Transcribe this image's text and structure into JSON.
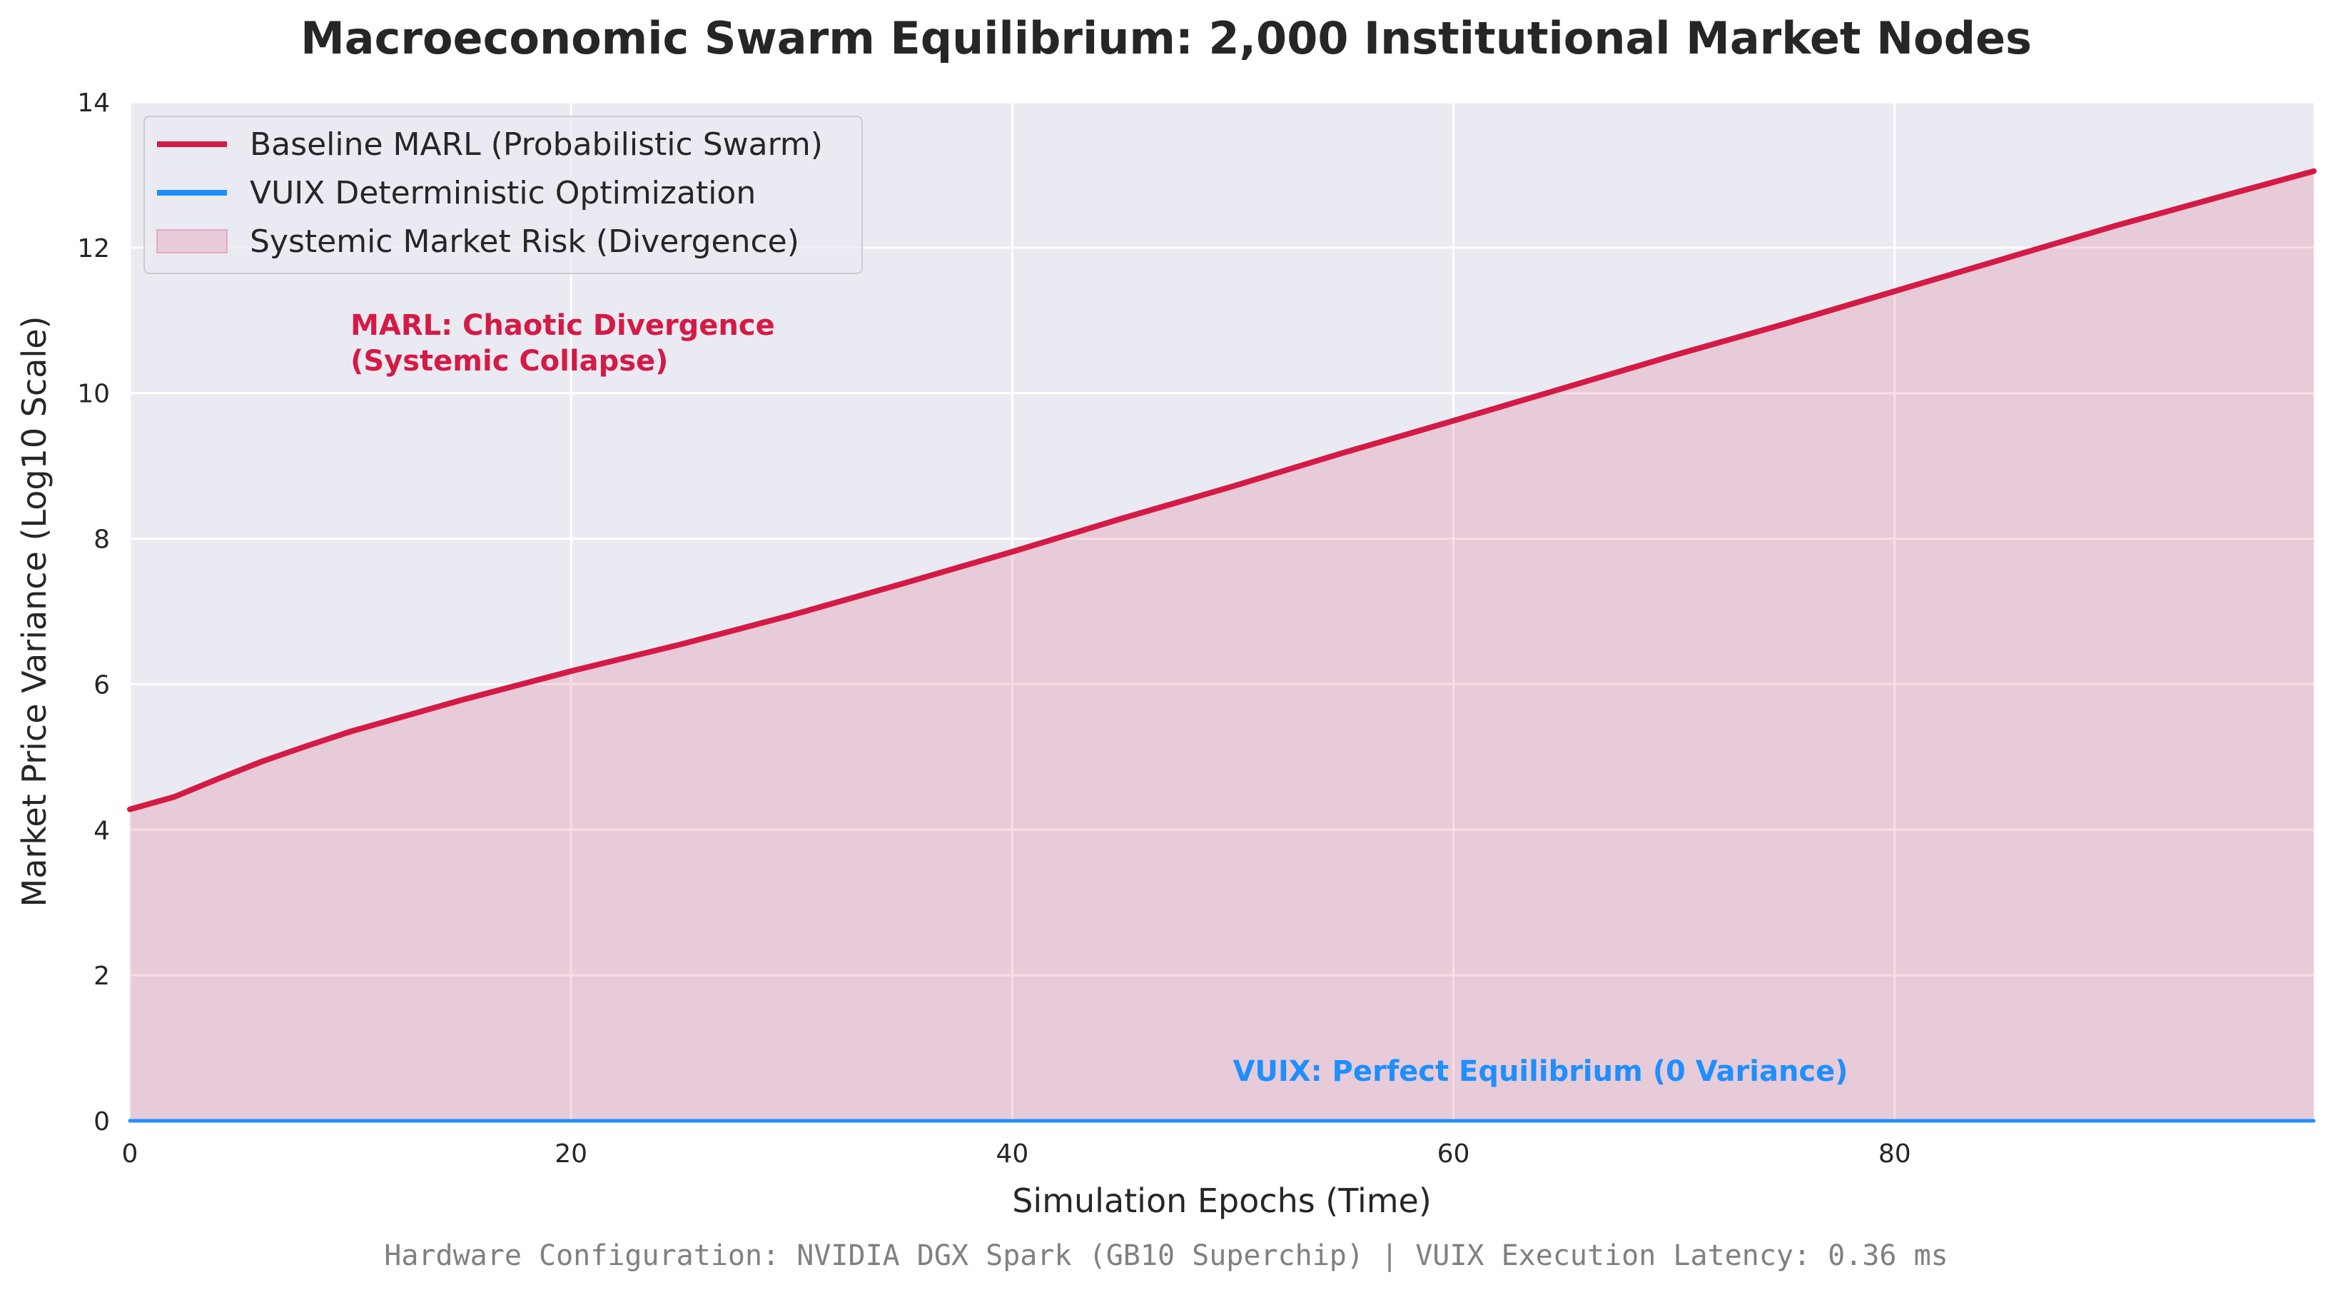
{
  "chart_data": {
    "type": "line",
    "title": "Macroeconomic Swarm Equilibrium: 2,000 Institutional Market Nodes",
    "xlabel": "Simulation Epochs (Time)",
    "ylabel": "Market Price Variance (Log10 Scale)",
    "xlim": [
      0,
      99
    ],
    "ylim": [
      0,
      14
    ],
    "x_ticks": [
      0,
      20,
      40,
      60,
      80
    ],
    "y_ticks": [
      0,
      2,
      4,
      6,
      8,
      10,
      12,
      14
    ],
    "grid": true,
    "legend_position": "top-left",
    "x": [
      0,
      2,
      4,
      6,
      8,
      10,
      15,
      20,
      25,
      30,
      35,
      40,
      45,
      50,
      55,
      60,
      65,
      70,
      75,
      80,
      85,
      90,
      95,
      99
    ],
    "series": [
      {
        "name": "Baseline MARL (Probabilistic Swarm)",
        "color": "#d41a45",
        "values": [
          4.28,
          4.45,
          4.7,
          4.94,
          5.15,
          5.35,
          5.78,
          6.18,
          6.55,
          6.95,
          7.38,
          7.82,
          8.28,
          8.72,
          9.18,
          9.62,
          10.07,
          10.52,
          10.95,
          11.4,
          11.85,
          12.3,
          12.72,
          13.05
        ]
      },
      {
        "name": "VUIX Deterministic Optimization",
        "color": "#1e8fff",
        "values": [
          0.0,
          0.0,
          0.0,
          0.0,
          0.0,
          0.0,
          0.0,
          0.0,
          0.0,
          0.0,
          0.0,
          0.0,
          0.0,
          0.0,
          0.0,
          0.0,
          0.0,
          0.0,
          0.0,
          0.0,
          0.0,
          0.0,
          0.0,
          0.0
        ]
      }
    ],
    "fill": {
      "name": "Systemic Market Risk (Divergence)",
      "color": "#d41a45",
      "between": [
        "Baseline MARL (Probabilistic Swarm)",
        "VUIX Deterministic Optimization"
      ]
    },
    "annotations": [
      {
        "lines": [
          "MARL: Chaotic Divergence",
          "(Systemic Collapse)"
        ],
        "x": 10,
        "y": 10.8,
        "color": "#d41a45"
      },
      {
        "lines": [
          "VUIX: Perfect Equilibrium (0 Variance)"
        ],
        "x": 50,
        "y": 0.55,
        "color": "#1e8fff"
      }
    ],
    "footer": "Hardware Configuration: NVIDIA DGX Spark (GB10 Superchip) | VUIX Execution Latency: 0.36 ms"
  }
}
